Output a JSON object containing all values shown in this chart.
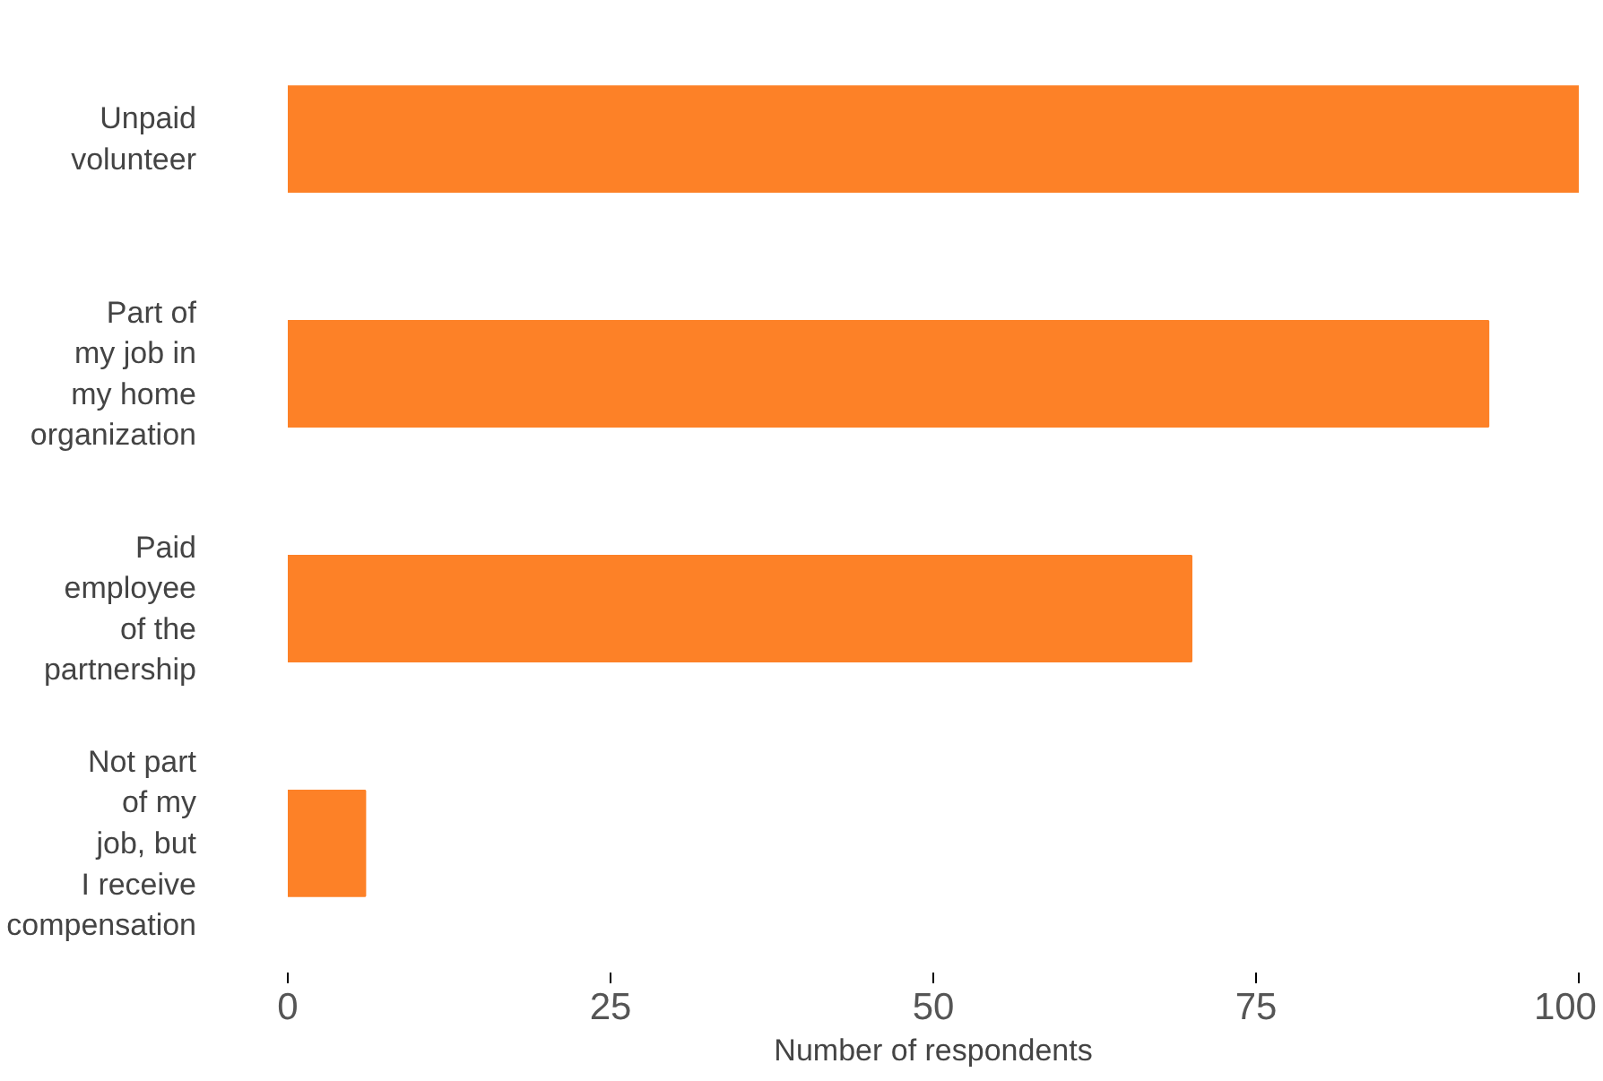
{
  "chart_data": {
    "type": "bar",
    "orientation": "horizontal",
    "xlabel": "Number of respondents",
    "categories": [
      "Unpaid volunteer",
      "Part of my job in my home organization",
      "Paid employee of the partnership",
      "Not part of my job, but I receive compensation"
    ],
    "values": [
      100,
      93,
      70,
      6
    ],
    "color": "#fd8127",
    "xlim": [
      0,
      100
    ],
    "xticks": [
      0,
      25,
      50,
      75,
      100
    ],
    "grid": false
  }
}
